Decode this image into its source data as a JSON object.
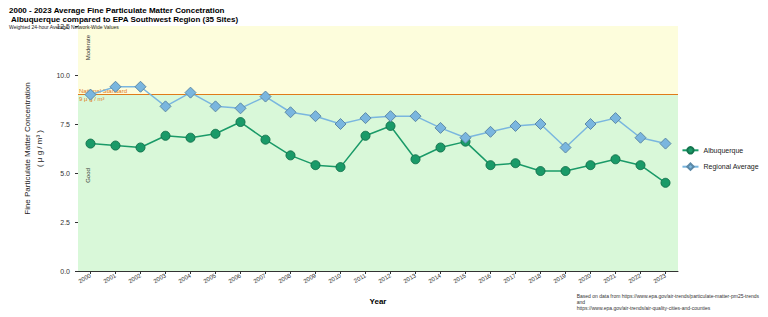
{
  "chart_data": {
    "type": "line",
    "title": "2000 - 2023 Average Fine Particulate Matter Concetration",
    "subtitle": " Albuquerque compared to EPA Southwest Region (35 Sites)",
    "note": "Weighted 24-hour Average, Network-Wide Values",
    "x_label": "Year",
    "y_label": "Fine Particulate Matter Concentration",
    "y_unit": "( μ g / m³ )",
    "source": [
      "Based on data from https://www.epa.gov/air-trends/particulate-matter-pm25-trends",
      "and",
      "https://www.epa.gov/air-trends/air-quality-cities-and-counties"
    ],
    "categories": [
      "2000",
      "2001",
      "2002",
      "2003",
      "2004",
      "2005",
      "2006",
      "2007",
      "2008",
      "2009",
      "2010",
      "2011",
      "2012",
      "2013",
      "2014",
      "2015",
      "2016",
      "2017",
      "2018",
      "2019",
      "2020",
      "2021",
      "2022",
      "2023"
    ],
    "series": [
      {
        "name": "Albuquerque",
        "color": "#1a9a68",
        "marker": "circle",
        "values": [
          6.5,
          6.4,
          6.3,
          6.9,
          6.8,
          7.0,
          7.6,
          6.7,
          5.9,
          5.4,
          5.3,
          6.9,
          7.4,
          5.7,
          6.3,
          6.6,
          5.4,
          5.5,
          5.1,
          5.1,
          5.4,
          5.7,
          5.4,
          4.5
        ]
      },
      {
        "name": "Regional Average",
        "color": "#7ab6df",
        "marker": "diamond",
        "values": [
          9.0,
          9.4,
          9.4,
          8.4,
          9.1,
          8.4,
          8.3,
          8.9,
          8.1,
          7.9,
          7.5,
          7.8,
          7.9,
          7.9,
          7.3,
          6.8,
          7.1,
          7.4,
          7.5,
          6.3,
          7.5,
          7.8,
          6.8,
          6.5
        ]
      }
    ],
    "bands": [
      {
        "from": 0,
        "to": 9,
        "label": "Good",
        "color": "#d9f8d9"
      },
      {
        "from": 9,
        "to": 12.5,
        "label": "Moderate",
        "color": "#fdfddc"
      }
    ],
    "reference_line": {
      "value": 9,
      "label": "National Standard",
      "sublabel": "9 μ g / m³",
      "color": "#e07b1a"
    },
    "ylim": [
      0,
      12.5
    ],
    "yticks": [
      {
        "value": 0,
        "label": "0.0"
      },
      {
        "value": 2.5,
        "label": "2.5"
      },
      {
        "value": 5,
        "label": "5.0"
      },
      {
        "value": 7.5,
        "label": "7.5"
      },
      {
        "value": 10,
        "label": "10.0"
      },
      {
        "value": 12.5,
        "label": "12.5"
      }
    ],
    "grid": false,
    "legend": "right"
  }
}
